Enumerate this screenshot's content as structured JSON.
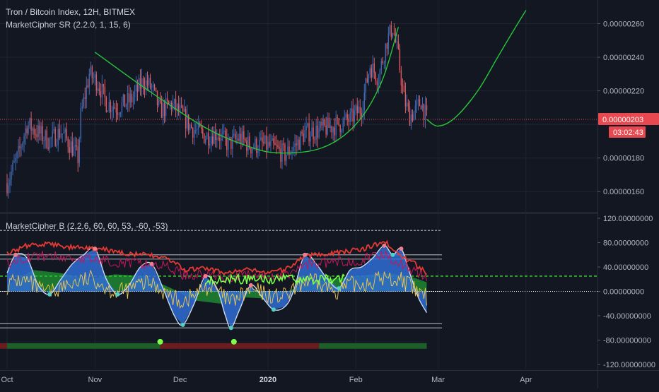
{
  "header": {
    "title": "Tron / Bitcoin Index, 12H, BITMEX",
    "indicator_sr": "MarketCipher SR (2.2.0, 1, 15, 6)",
    "indicator_b": "MarketCipher B (2.2.6, 60, 60, 53, -60, -53)"
  },
  "colors": {
    "background": "#131722",
    "grid": "#1f2430",
    "candle_up": "#3f6ab3",
    "candle_down": "#e05a61",
    "curve": "#27c43a",
    "badge": "#e8484f",
    "money_flow_up": "#27c43a",
    "money_flow_down": "#d32f2f",
    "wave_blue": "#2f6dd4",
    "wave_light": "#c8d9f2",
    "rsi_line": "#e53935",
    "stoch_line": "#c2185b",
    "mfi_line": "#f2c94c",
    "vwap_green": "#7cff4a"
  },
  "price_axis": {
    "labels": [
      "0.00000260",
      "0.00000240",
      "0.00000220",
      "0.00000180",
      "0.00000160"
    ],
    "current_price": "0.00000203",
    "countdown": "03:02:43"
  },
  "osc_axis": {
    "labels": [
      "120.00000000",
      "80.00000000",
      "40.00000000",
      "0.00000000",
      "-40.00000000",
      "-80.00000000",
      "-120.00000000"
    ]
  },
  "time_axis": {
    "labels": [
      "Oct",
      "Nov",
      "Dec",
      "2020",
      "Feb",
      "Mar",
      "Apr"
    ]
  },
  "chart_data": [
    {
      "type": "candlestick",
      "title": "Tron / Bitcoin Index, 12H, BITMEX",
      "x_range": [
        "2019-10-01",
        "2020-04-15"
      ],
      "ylim": [
        1.5e-06,
        2.72e-06
      ],
      "close_path": [
        [
          "2019-10-01",
          1.65e-06
        ],
        [
          "2019-10-05",
          1.82e-06
        ],
        [
          "2019-10-08",
          2e-06
        ],
        [
          "2019-10-12",
          1.95e-06
        ],
        [
          "2019-10-16",
          1.9e-06
        ],
        [
          "2019-10-20",
          1.96e-06
        ],
        [
          "2019-10-24",
          1.86e-06
        ],
        [
          "2019-10-26",
          1.8e-06
        ],
        [
          "2019-10-27",
          2.05e-06
        ],
        [
          "2019-10-30",
          2.3e-06
        ],
        [
          "2019-11-02",
          2.25e-06
        ],
        [
          "2019-11-05",
          2.13e-06
        ],
        [
          "2019-11-09",
          2.1e-06
        ],
        [
          "2019-11-14",
          2.15e-06
        ],
        [
          "2019-11-18",
          2.26e-06
        ],
        [
          "2019-11-21",
          2.22e-06
        ],
        [
          "2019-11-24",
          2.08e-06
        ],
        [
          "2019-11-28",
          2.12e-06
        ],
        [
          "2019-12-02",
          2.05e-06
        ],
        [
          "2019-12-05",
          1.98e-06
        ],
        [
          "2019-12-10",
          1.93e-06
        ],
        [
          "2019-12-14",
          1.95e-06
        ],
        [
          "2019-12-18",
          1.88e-06
        ],
        [
          "2019-12-22",
          1.92e-06
        ],
        [
          "2019-12-26",
          1.87e-06
        ],
        [
          "2019-12-30",
          1.88e-06
        ],
        [
          "2020-01-03",
          1.86e-06
        ],
        [
          "2020-01-07",
          1.82e-06
        ],
        [
          "2020-01-11",
          1.88e-06
        ],
        [
          "2020-01-14",
          1.95e-06
        ],
        [
          "2020-01-18",
          1.96e-06
        ],
        [
          "2020-01-22",
          1.98e-06
        ],
        [
          "2020-01-26",
          2e-06
        ],
        [
          "2020-01-30",
          2.03e-06
        ],
        [
          "2020-02-03",
          2.1e-06
        ],
        [
          "2020-02-06",
          2.35e-06
        ],
        [
          "2020-02-09",
          2.28e-06
        ],
        [
          "2020-02-12",
          2.5e-06
        ],
        [
          "2020-02-14",
          2.58e-06
        ],
        [
          "2020-02-16",
          2.4e-06
        ],
        [
          "2020-02-18",
          2.15e-06
        ],
        [
          "2020-02-20",
          2.05e-06
        ],
        [
          "2020-02-22",
          2.08e-06
        ],
        [
          "2020-02-24",
          2.14e-06
        ],
        [
          "2020-02-26",
          2.03e-06
        ]
      ],
      "curve_path": [
        [
          "2019-11-01",
          2.43e-06
        ],
        [
          "2019-11-20",
          2.2e-06
        ],
        [
          "2019-12-10",
          1.98e-06
        ],
        [
          "2019-12-25",
          1.87e-06
        ],
        [
          "2020-01-05",
          1.83e-06
        ],
        [
          "2020-01-20",
          1.86e-06
        ],
        [
          "2020-02-01",
          2e-06
        ],
        [
          "2020-02-10",
          2.25e-06
        ],
        [
          "2020-02-16",
          2.58e-06
        ]
      ],
      "curve_path_2": [
        [
          "2020-02-26",
          2.03e-06
        ],
        [
          "2020-03-01",
          1.99e-06
        ],
        [
          "2020-03-07",
          2.04e-06
        ],
        [
          "2020-03-15",
          2.2e-06
        ],
        [
          "2020-03-22",
          2.4e-06
        ],
        [
          "2020-03-28",
          2.57e-06
        ],
        [
          "2020-04-01",
          2.68e-06
        ]
      ]
    },
    {
      "type": "area",
      "title": "MarketCipher B (2.2.6, 60, 60, 53, -60, -53)",
      "ylim": [
        -120,
        120
      ],
      "levels": [
        100,
        60,
        53,
        0,
        -53,
        -60
      ],
      "dashed_level": 25,
      "wave": [
        [
          "2019-10-01",
          30
        ],
        [
          "2019-10-04",
          60
        ],
        [
          "2019-10-08",
          55
        ],
        [
          "2019-10-12",
          10
        ],
        [
          "2019-10-16",
          -5
        ],
        [
          "2019-10-20",
          20
        ],
        [
          "2019-10-24",
          45
        ],
        [
          "2019-10-28",
          60
        ],
        [
          "2019-11-01",
          70
        ],
        [
          "2019-11-05",
          20
        ],
        [
          "2019-11-09",
          -5
        ],
        [
          "2019-11-13",
          10
        ],
        [
          "2019-11-17",
          40
        ],
        [
          "2019-11-21",
          45
        ],
        [
          "2019-11-25",
          5
        ],
        [
          "2019-11-29",
          -40
        ],
        [
          "2019-12-02",
          -55
        ],
        [
          "2019-12-06",
          -20
        ],
        [
          "2019-12-10",
          25
        ],
        [
          "2019-12-14",
          5
        ],
        [
          "2019-12-17",
          -40
        ],
        [
          "2019-12-19",
          -60
        ],
        [
          "2019-12-22",
          -30
        ],
        [
          "2019-12-26",
          10
        ],
        [
          "2019-12-30",
          -10
        ],
        [
          "2020-01-03",
          -30
        ],
        [
          "2020-01-07",
          -25
        ],
        [
          "2020-01-10",
          0
        ],
        [
          "2020-01-14",
          60
        ],
        [
          "2020-01-18",
          45
        ],
        [
          "2020-01-22",
          20
        ],
        [
          "2020-01-26",
          5
        ],
        [
          "2020-01-30",
          35
        ],
        [
          "2020-02-03",
          40
        ],
        [
          "2020-02-07",
          55
        ],
        [
          "2020-02-11",
          75
        ],
        [
          "2020-02-14",
          60
        ],
        [
          "2020-02-17",
          70
        ],
        [
          "2020-02-20",
          30
        ],
        [
          "2020-02-23",
          -10
        ],
        [
          "2020-02-26",
          -35
        ]
      ],
      "rsi": [
        [
          "2019-10-01",
          62
        ],
        [
          "2019-10-08",
          75
        ],
        [
          "2019-10-15",
          78
        ],
        [
          "2019-10-22",
          73
        ],
        [
          "2019-10-29",
          70
        ],
        [
          "2019-11-05",
          68
        ],
        [
          "2019-11-12",
          62
        ],
        [
          "2019-11-19",
          60
        ],
        [
          "2019-11-26",
          55
        ],
        [
          "2019-12-03",
          35
        ],
        [
          "2019-12-10",
          38
        ],
        [
          "2019-12-17",
          30
        ],
        [
          "2019-12-24",
          35
        ],
        [
          "2019-12-31",
          32
        ],
        [
          "2020-01-07",
          35
        ],
        [
          "2020-01-14",
          58
        ],
        [
          "2020-01-21",
          62
        ],
        [
          "2020-01-28",
          65
        ],
        [
          "2020-02-04",
          70
        ],
        [
          "2020-02-11",
          82
        ],
        [
          "2020-02-18",
          55
        ],
        [
          "2020-02-22",
          45
        ],
        [
          "2020-02-26",
          30
        ]
      ],
      "money_flow": [
        [
          "2019-10-01",
          10
        ],
        [
          "2019-10-10",
          35
        ],
        [
          "2019-10-20",
          30
        ],
        [
          "2019-10-30",
          20
        ],
        [
          "2019-11-08",
          28
        ],
        [
          "2019-11-18",
          25
        ],
        [
          "2019-11-28",
          5
        ],
        [
          "2019-12-06",
          -15
        ],
        [
          "2019-12-15",
          -20
        ],
        [
          "2019-12-24",
          -10
        ],
        [
          "2020-01-02",
          -12
        ],
        [
          "2020-01-12",
          8
        ],
        [
          "2020-01-22",
          20
        ],
        [
          "2020-02-01",
          25
        ],
        [
          "2020-02-11",
          30
        ],
        [
          "2020-02-20",
          25
        ],
        [
          "2020-02-26",
          15
        ]
      ]
    }
  ]
}
